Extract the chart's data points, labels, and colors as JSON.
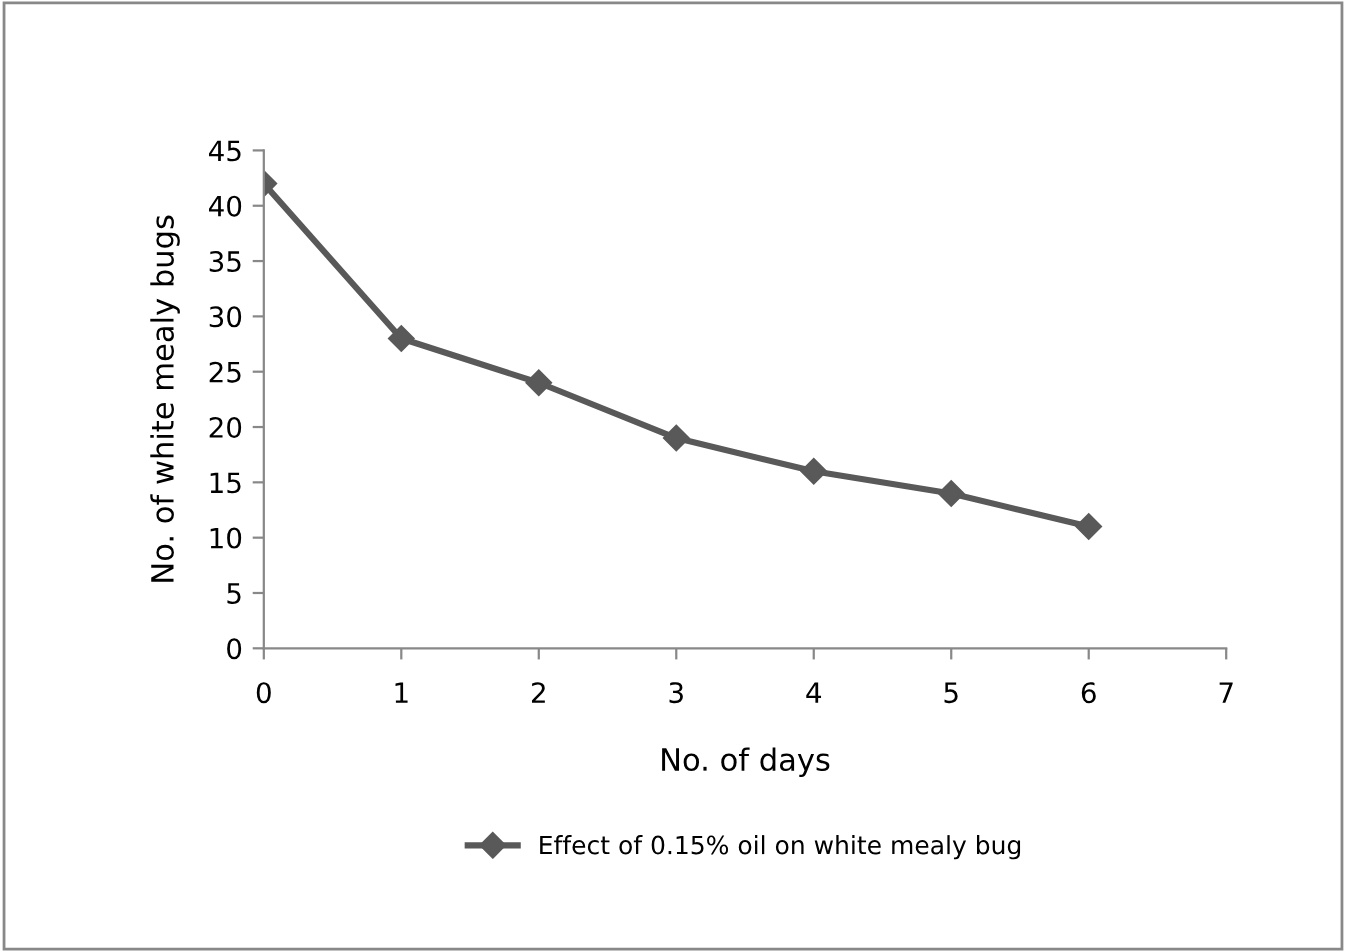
{
  "chart_data": {
    "type": "line",
    "xlabel": "No. of days",
    "ylabel": "No. of white mealy bugs",
    "x": [
      0,
      1,
      2,
      3,
      4,
      5,
      6
    ],
    "series": [
      {
        "name": "Effect of 0.15% oil on white mealy bug",
        "color": "#595959",
        "values": [
          42,
          28,
          24,
          19,
          16,
          14,
          11
        ]
      }
    ],
    "xlim": [
      0,
      7
    ],
    "xticks": [
      0,
      1,
      2,
      3,
      4,
      5,
      6,
      7
    ],
    "ylim": [
      0,
      45
    ],
    "yticks": [
      0,
      5,
      10,
      15,
      20,
      25,
      30,
      35,
      40,
      45
    ],
    "grid": false,
    "legend": "bottom",
    "marker": "diamond",
    "line_style": "solid"
  }
}
